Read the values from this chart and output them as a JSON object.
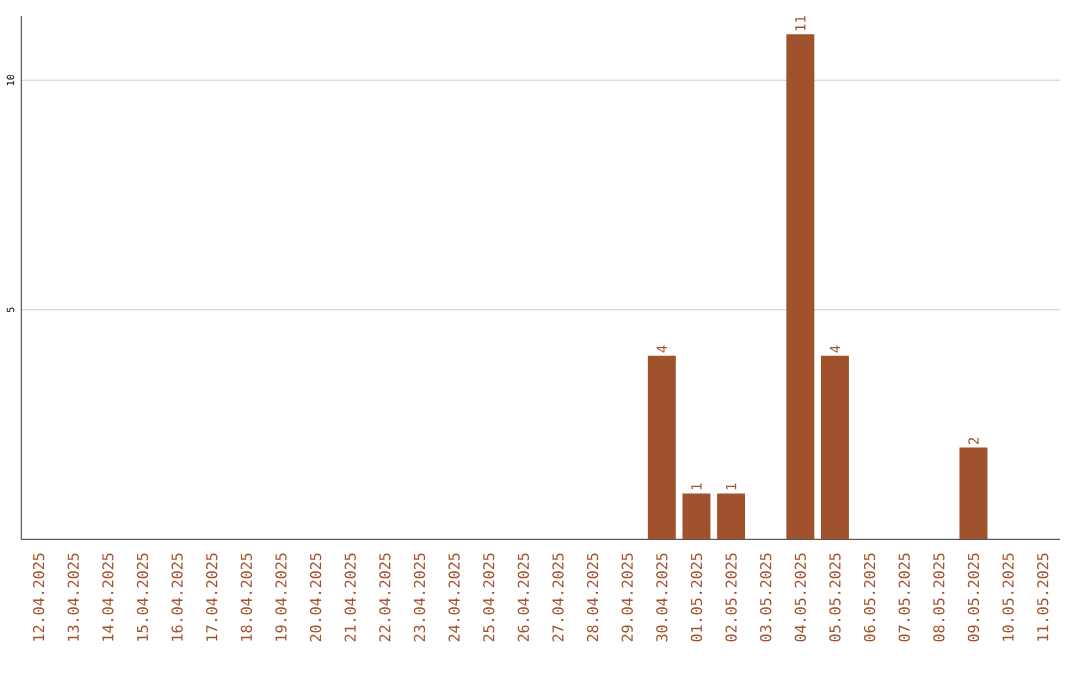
{
  "chart_data": {
    "type": "bar",
    "categories": [
      "12.04.2025",
      "13.04.2025",
      "14.04.2025",
      "15.04.2025",
      "16.04.2025",
      "17.04.2025",
      "18.04.2025",
      "19.04.2025",
      "20.04.2025",
      "21.04.2025",
      "22.04.2025",
      "23.04.2025",
      "24.04.2025",
      "25.04.2025",
      "26.04.2025",
      "27.04.2025",
      "28.04.2025",
      "29.04.2025",
      "30.04.2025",
      "01.05.2025",
      "02.05.2025",
      "03.05.2025",
      "04.05.2025",
      "05.05.2025",
      "06.05.2025",
      "07.05.2025",
      "08.05.2025",
      "09.05.2025",
      "10.05.2025",
      "11.05.2025"
    ],
    "values": [
      0,
      0,
      0,
      0,
      0,
      0,
      0,
      0,
      0,
      0,
      0,
      0,
      0,
      0,
      0,
      0,
      0,
      0,
      4,
      1,
      1,
      0,
      11,
      4,
      0,
      0,
      0,
      2,
      0,
      0
    ],
    "value_labels": [
      null,
      null,
      null,
      null,
      null,
      null,
      null,
      null,
      null,
      null,
      null,
      null,
      null,
      null,
      null,
      null,
      null,
      null,
      "4",
      "1",
      "1",
      null,
      "11",
      "4",
      null,
      null,
      null,
      "2",
      null,
      null
    ],
    "color": "#a0522d",
    "ylim": [
      0,
      11.4
    ],
    "yticks": [
      5,
      10
    ],
    "grid": "y"
  }
}
